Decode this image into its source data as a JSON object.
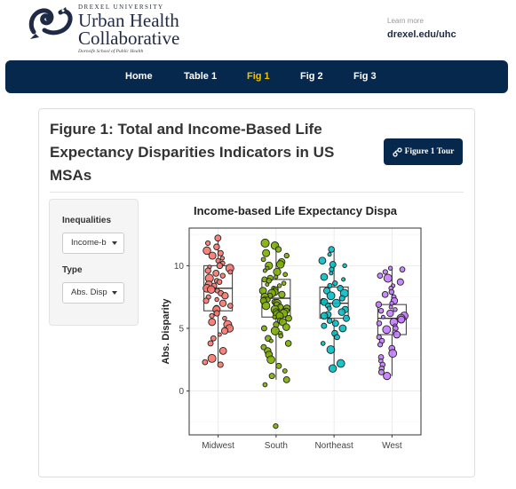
{
  "header": {
    "logo": {
      "university": "DREXEL UNIVERSITY",
      "line1": "Urban Health",
      "line2": "Collaborative",
      "school": "Dornsife School of Public Health"
    },
    "learn_more": "Learn more",
    "link": "drexel.edu/uhc"
  },
  "nav": {
    "items": [
      {
        "label": "Home"
      },
      {
        "label": "Table 1"
      },
      {
        "label": "Fig 1",
        "active": true
      },
      {
        "label": "Fig 2"
      },
      {
        "label": "Fig 3"
      }
    ]
  },
  "panel": {
    "title": "Figure 1: Total and Income-Based Life Expectancy Disparities Indicators in US MSAs",
    "tour_button": "Figure 1 Tour",
    "controls": {
      "inequalities_label": "Inequalities",
      "inequalities_value": "Income-b",
      "type_label": "Type",
      "type_value": "Abs. Disp"
    }
  },
  "colors": {
    "navy": "#07284d",
    "active_nav": "#f0c300",
    "midwest": "#f8766d",
    "south": "#7cae00",
    "northeast": "#00bfc4",
    "west": "#c77cff"
  },
  "chart_data": {
    "type": "box with jittered points",
    "title": "Income-based Life Expectancy Dispa",
    "xlabel": "",
    "ylabel": "Abs. Disparity",
    "ylim": [
      -3.5,
      13
    ],
    "yticks": [
      0,
      5,
      10
    ],
    "grid": true,
    "categories": [
      "Midwest",
      "South",
      "Northeast",
      "West"
    ],
    "series": [
      {
        "name": "Midwest",
        "color": "#f8766d",
        "min": 2.1,
        "q1": 6.4,
        "median": 8.2,
        "q3": 10.0,
        "max": 12.1,
        "points": [
          12.2,
          11.8,
          11.5,
          11.2,
          11.0,
          10.8,
          10.6,
          10.4,
          10.2,
          10.0,
          9.9,
          9.8,
          9.6,
          9.5,
          9.4,
          9.2,
          9.0,
          8.8,
          8.7,
          8.5,
          8.4,
          8.2,
          8.1,
          8.0,
          7.8,
          7.6,
          7.5,
          7.3,
          7.2,
          7.0,
          6.8,
          6.6,
          6.5,
          6.2,
          6.0,
          5.8,
          5.5,
          5.3,
          5.0,
          4.8,
          4.5,
          4.2,
          3.8,
          3.2,
          2.6,
          2.3,
          2.1
        ]
      },
      {
        "name": "South",
        "color": "#7cae00",
        "min": 0.9,
        "q1": 5.9,
        "median": 7.4,
        "q3": 8.9,
        "max": 11.8,
        "points": [
          11.8,
          11.6,
          11.3,
          11.0,
          10.8,
          10.5,
          10.3,
          10.1,
          10.0,
          9.8,
          9.6,
          9.5,
          9.3,
          9.1,
          9.0,
          8.9,
          8.8,
          8.6,
          8.5,
          8.4,
          8.2,
          8.1,
          8.0,
          7.9,
          7.8,
          7.7,
          7.6,
          7.5,
          7.4,
          7.3,
          7.2,
          7.1,
          7.0,
          6.9,
          6.8,
          6.7,
          6.6,
          6.5,
          6.4,
          6.3,
          6.2,
          6.1,
          6.0,
          5.9,
          5.8,
          5.6,
          5.5,
          5.3,
          5.1,
          5.0,
          4.8,
          4.6,
          4.4,
          4.2,
          4.0,
          3.8,
          3.5,
          3.2,
          2.9,
          2.5,
          2.0,
          1.6,
          1.2,
          0.9,
          0.5,
          -2.8
        ]
      },
      {
        "name": "Northeast",
        "color": "#00bfc4",
        "min": 1.8,
        "q1": 5.8,
        "median": 7.0,
        "q3": 8.3,
        "max": 11.3,
        "points": [
          11.3,
          10.9,
          10.4,
          10.1,
          10.0,
          9.7,
          9.4,
          9.1,
          8.9,
          8.6,
          8.4,
          8.2,
          8.0,
          7.8,
          7.6,
          7.4,
          7.2,
          7.1,
          7.0,
          6.8,
          6.6,
          6.5,
          6.3,
          6.1,
          6.0,
          5.8,
          5.6,
          5.4,
          5.2,
          5.0,
          4.6,
          4.3,
          3.8,
          3.3,
          2.2,
          1.8
        ]
      },
      {
        "name": "West",
        "color": "#c77cff",
        "min": 1.2,
        "q1": 4.5,
        "median": 5.8,
        "q3": 6.9,
        "max": 9.8,
        "points": [
          9.8,
          9.7,
          9.5,
          9.2,
          9.0,
          8.7,
          8.4,
          8.2,
          7.9,
          7.7,
          7.5,
          7.2,
          7.0,
          6.9,
          6.7,
          6.5,
          6.4,
          6.2,
          6.0,
          5.9,
          5.8,
          5.7,
          5.5,
          5.4,
          5.2,
          5.0,
          4.9,
          4.7,
          4.5,
          4.3,
          4.0,
          3.7,
          3.4,
          3.0,
          2.7,
          2.4,
          2.1,
          1.8,
          1.5,
          1.2
        ]
      }
    ]
  }
}
